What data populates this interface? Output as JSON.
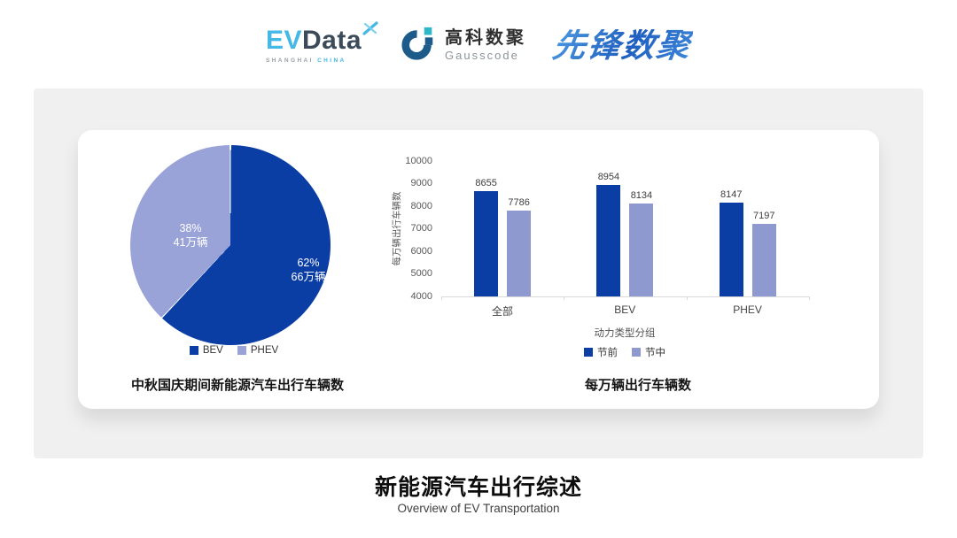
{
  "header": {
    "evdata_logo": {
      "ev": "EV",
      "data": "Data",
      "sub_left": "SHANGHAI",
      "sub_right": "CHINA"
    },
    "gausscode_logo": {
      "cn": "高科数聚",
      "en": "Gausscode"
    },
    "xianfeng_logo": {
      "text": "先锋数聚"
    }
  },
  "colors": {
    "series_dark_blue": "#0a3ea5",
    "series_light_purple": "#8e99d0",
    "panel_gray": "#f0f0f1",
    "logo_light_blue": "#45b8e6",
    "logo_dark_blue": "#1d5c8a",
    "logo_teal": "#2cb8c8"
  },
  "chart_data": [
    {
      "type": "pie",
      "title": "中秋国庆期间新能源汽车出行车辆数",
      "labels": [
        "BEV",
        "PHEV"
      ],
      "values": [
        62,
        38
      ],
      "value_labels": [
        [
          "62%",
          "66万辆"
        ],
        [
          "38%",
          "41万辆"
        ]
      ],
      "colors": [
        "#0a3ea5",
        "#99a3d8"
      ],
      "legend_position": "bottom",
      "start_angle_deg": 0,
      "direction": "clockwise"
    },
    {
      "type": "bar",
      "title": "每万辆出行车辆数",
      "categories": [
        "全部",
        "BEV",
        "PHEV"
      ],
      "series": [
        {
          "name": "节前",
          "values": [
            8655,
            8954,
            8147
          ],
          "color": "#0a3ea5"
        },
        {
          "name": "节中",
          "values": [
            7786,
            8134,
            7197
          ],
          "color": "#8e99d0"
        }
      ],
      "xlabel": "动力类型分组",
      "ylabel": "每万辆出行车辆数",
      "ylim": [
        4000,
        10000
      ],
      "yticks": [
        10000,
        9000,
        8000,
        7000,
        6000,
        5000,
        4000
      ],
      "grid": false,
      "legend_position": "bottom"
    }
  ],
  "footer": {
    "title": "新能源汽车出行综述",
    "subtitle": "Overview of EV Transportation"
  }
}
